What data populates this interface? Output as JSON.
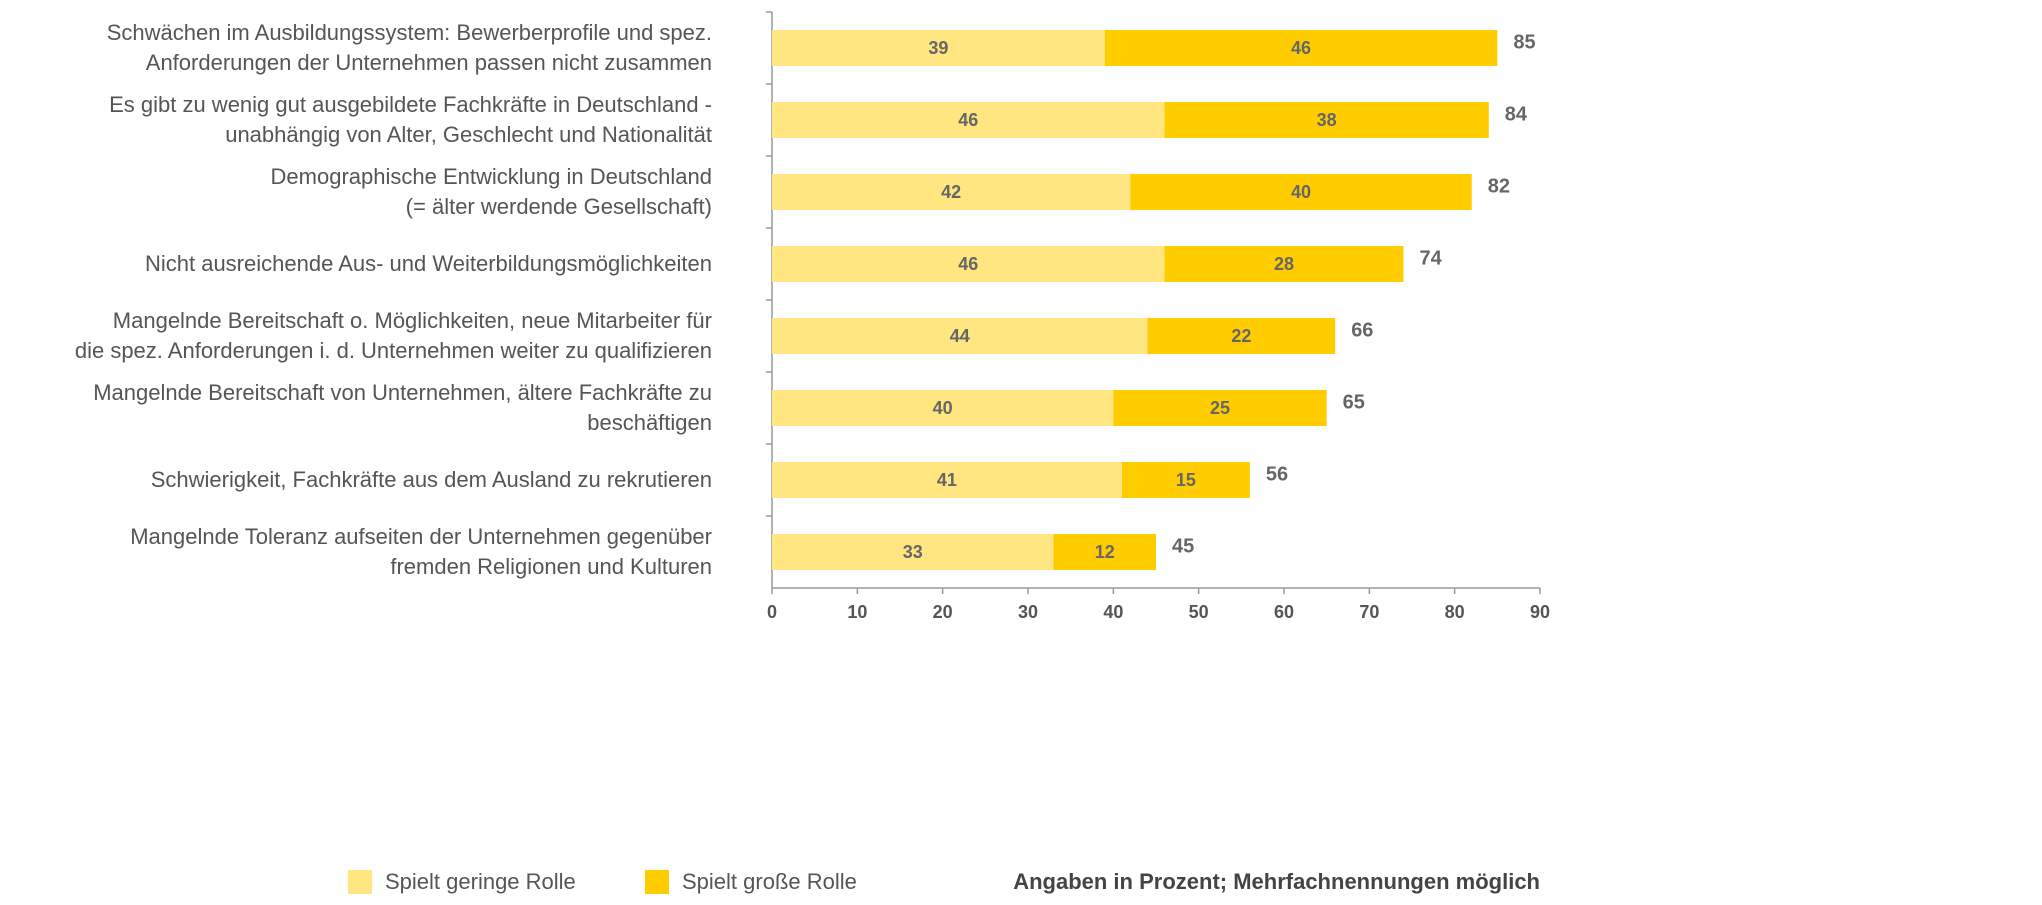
{
  "chart_data": {
    "type": "stacked-barh",
    "categories": [
      "Schwächen im Ausbildungssystem: Bewerberprofile und spez.\nAnforderungen der Unternehmen passen nicht zusammen",
      "Es gibt zu wenig gut ausgebildete Fachkräfte in Deutschland -\nunabhängig von Alter, Geschlecht und Nationalität",
      "Demographische Entwicklung in Deutschland\n(= älter werdende Gesellschaft)",
      "Nicht ausreichende Aus- und Weiterbildungsmöglichkeiten",
      "Mangelnde Bereitschaft o. Möglichkeiten, neue Mitarbeiter für\ndie spez. Anforderungen i. d. Unternehmen weiter zu qualifizieren",
      "Mangelnde Bereitschaft von Unternehmen, ältere Fachkräfte zu\nbeschäftigen",
      "Schwierigkeit, Fachkräfte aus dem Ausland zu rekrutieren",
      "Mangelnde Toleranz aufseiten der Unternehmen gegenüber\nfremden Religionen und Kulturen"
    ],
    "series": [
      {
        "name": "Spielt geringe Rolle",
        "color": "#ffe680",
        "values": [
          39,
          46,
          42,
          46,
          44,
          40,
          41,
          33
        ]
      },
      {
        "name": "Spielt große Rolle",
        "color": "#ffcc00",
        "values": [
          46,
          38,
          40,
          28,
          22,
          25,
          15,
          12
        ]
      }
    ],
    "totals": [
      85,
      84,
      82,
      74,
      66,
      65,
      56,
      45
    ],
    "xlim": [
      0,
      90
    ],
    "xticks": [
      0,
      10,
      20,
      30,
      40,
      50,
      60,
      70,
      80,
      90
    ],
    "note": "Angaben in Prozent; Mehrfachnennungen möglich"
  }
}
